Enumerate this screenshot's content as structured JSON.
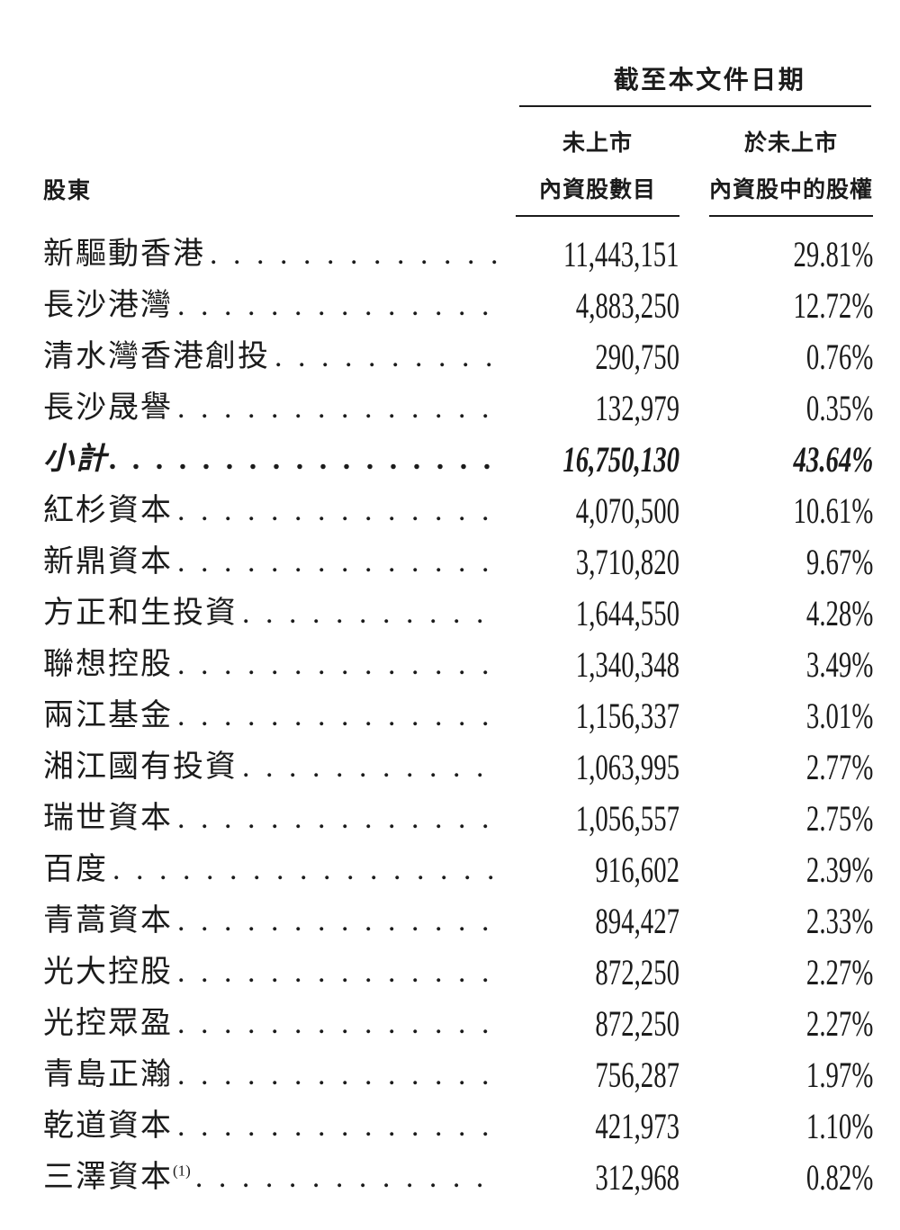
{
  "table": {
    "spanner_header": "截至本文件日期",
    "col_shareholder": "股東",
    "col_shares_line1": "未上市",
    "col_shares_line2": "內資股數目",
    "col_pct_line1": "於未上市",
    "col_pct_line2": "內資股中的股權",
    "rows": [
      {
        "name": "新驅動香港",
        "sup": "",
        "shares": "11,443,151",
        "pct": "29.81%",
        "emphasis": false
      },
      {
        "name": "長沙港灣",
        "sup": "",
        "shares": "4,883,250",
        "pct": "12.72%",
        "emphasis": false
      },
      {
        "name": "清水灣香港創投",
        "sup": "",
        "shares": "290,750",
        "pct": "0.76%",
        "emphasis": false
      },
      {
        "name": "長沙晟譽",
        "sup": "",
        "shares": "132,979",
        "pct": "0.35%",
        "emphasis": false
      },
      {
        "name": "小計",
        "sup": "",
        "shares": "16,750,130",
        "pct": "43.64%",
        "emphasis": true
      },
      {
        "name": "紅杉資本",
        "sup": "",
        "shares": "4,070,500",
        "pct": "10.61%",
        "emphasis": false
      },
      {
        "name": "新鼎資本",
        "sup": "",
        "shares": "3,710,820",
        "pct": "9.67%",
        "emphasis": false
      },
      {
        "name": "方正和生投資",
        "sup": "",
        "shares": "1,644,550",
        "pct": "4.28%",
        "emphasis": false
      },
      {
        "name": "聯想控股",
        "sup": "",
        "shares": "1,340,348",
        "pct": "3.49%",
        "emphasis": false
      },
      {
        "name": "兩江基金",
        "sup": "",
        "shares": "1,156,337",
        "pct": "3.01%",
        "emphasis": false
      },
      {
        "name": "湘江國有投資",
        "sup": "",
        "shares": "1,063,995",
        "pct": "2.77%",
        "emphasis": false
      },
      {
        "name": "瑞世資本",
        "sup": "",
        "shares": "1,056,557",
        "pct": "2.75%",
        "emphasis": false
      },
      {
        "name": "百度",
        "sup": "",
        "shares": "916,602",
        "pct": "2.39%",
        "emphasis": false
      },
      {
        "name": "青蒿資本",
        "sup": "",
        "shares": "894,427",
        "pct": "2.33%",
        "emphasis": false
      },
      {
        "name": "光大控股",
        "sup": "",
        "shares": "872,250",
        "pct": "2.27%",
        "emphasis": false
      },
      {
        "name": "光控眾盈",
        "sup": "",
        "shares": "872,250",
        "pct": "2.27%",
        "emphasis": false
      },
      {
        "name": "青島正瀚",
        "sup": "",
        "shares": "756,287",
        "pct": "1.97%",
        "emphasis": false
      },
      {
        "name": "乾道資本",
        "sup": "",
        "shares": "421,973",
        "pct": "1.10%",
        "emphasis": false
      },
      {
        "name": "三澤資本",
        "sup": "(1)",
        "shares": "312,968",
        "pct": "0.82%",
        "emphasis": false
      }
    ],
    "dot_leader": ". . . . . . . . . . . . . . . . . . . . . . . . . . . . . . . . . . . . . . . . . . . . . . . . . ."
  }
}
